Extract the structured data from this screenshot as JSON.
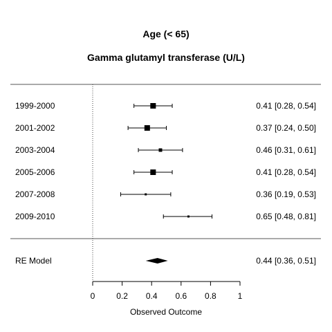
{
  "chart_data": {
    "type": "forest",
    "title": "Age (< 65)",
    "subtitle": "Gamma glutamyl transferase (U/L)",
    "xlabel": "Observed Outcome",
    "xlim": [
      0,
      1
    ],
    "xticks": [
      "0",
      "0.2",
      "0.4",
      "0.6",
      "0.8",
      "1"
    ],
    "reference_line": 0,
    "studies": [
      {
        "label": "1999-2000",
        "estimate": 0.41,
        "lower": 0.28,
        "upper": 0.54,
        "text": "0.41 [0.28, 0.54]",
        "weight": 3
      },
      {
        "label": "2001-2002",
        "estimate": 0.37,
        "lower": 0.24,
        "upper": 0.5,
        "text": "0.37 [0.24, 0.50]",
        "weight": 3
      },
      {
        "label": "2003-2004",
        "estimate": 0.46,
        "lower": 0.31,
        "upper": 0.61,
        "text": "0.46 [0.31, 0.61]",
        "weight": 2
      },
      {
        "label": "2005-2006",
        "estimate": 0.41,
        "lower": 0.28,
        "upper": 0.54,
        "text": "0.41 [0.28, 0.54]",
        "weight": 3
      },
      {
        "label": "2007-2008",
        "estimate": 0.36,
        "lower": 0.19,
        "upper": 0.53,
        "text": "0.36 [0.19, 0.53]",
        "weight": 1
      },
      {
        "label": "2009-2010",
        "estimate": 0.65,
        "lower": 0.48,
        "upper": 0.81,
        "text": "0.65 [0.48, 0.81]",
        "weight": 1
      }
    ],
    "summary": {
      "label": "RE Model",
      "estimate": 0.44,
      "lower": 0.36,
      "upper": 0.51,
      "text": "0.44 [0.36, 0.51]"
    }
  }
}
